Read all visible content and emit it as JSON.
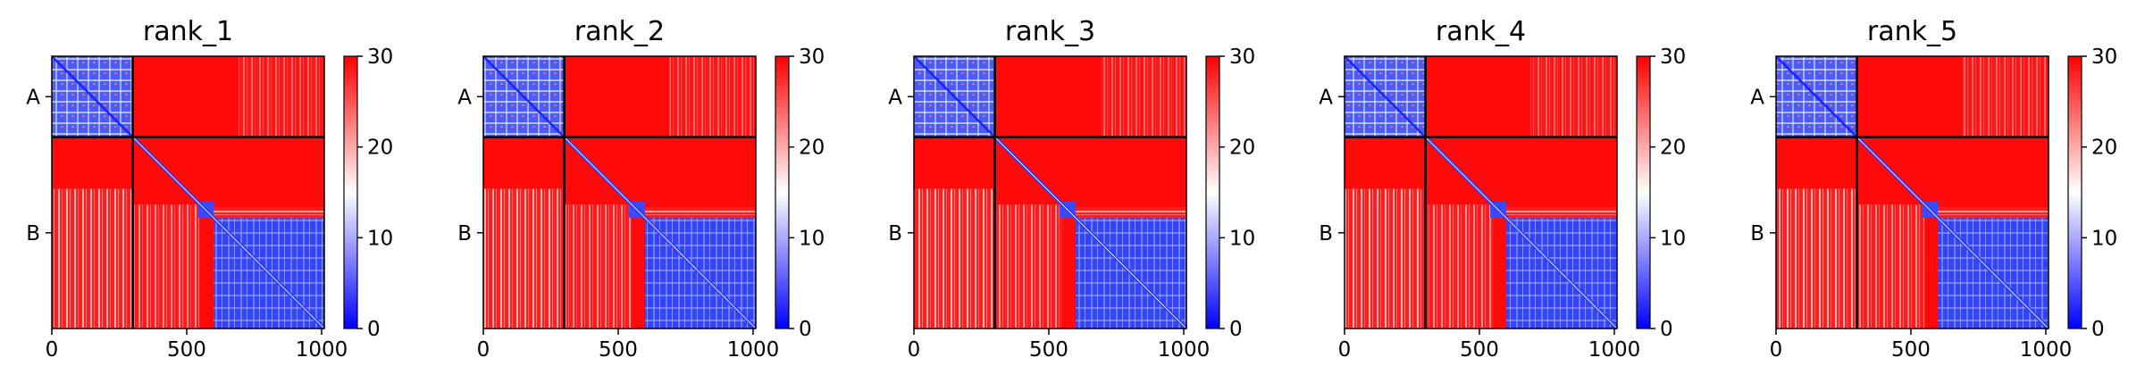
{
  "chart_data": [
    {
      "type": "heatmap",
      "title": "rank_1",
      "x_ticks": [
        0,
        500,
        1000
      ],
      "y_tick_labels": [
        "A",
        "B"
      ],
      "segments": [
        {
          "label": "A",
          "start": 0,
          "end": 300
        },
        {
          "label": "B",
          "start": 300,
          "end": 1010
        }
      ],
      "xlim": [
        0,
        1010
      ],
      "colorbar": {
        "min": 0,
        "max": 30,
        "ticks": [
          0,
          10,
          20,
          30
        ],
        "colormap": "bwr"
      }
    },
    {
      "type": "heatmap",
      "title": "rank_2",
      "x_ticks": [
        0,
        500,
        1000
      ],
      "y_tick_labels": [
        "A",
        "B"
      ],
      "segments": [
        {
          "label": "A",
          "start": 0,
          "end": 300
        },
        {
          "label": "B",
          "start": 300,
          "end": 1010
        }
      ],
      "xlim": [
        0,
        1010
      ],
      "colorbar": {
        "min": 0,
        "max": 30,
        "ticks": [
          0,
          10,
          20,
          30
        ],
        "colormap": "bwr"
      }
    },
    {
      "type": "heatmap",
      "title": "rank_3",
      "x_ticks": [
        0,
        500,
        1000
      ],
      "y_tick_labels": [
        "A",
        "B"
      ],
      "segments": [
        {
          "label": "A",
          "start": 0,
          "end": 300
        },
        {
          "label": "B",
          "start": 300,
          "end": 1010
        }
      ],
      "xlim": [
        0,
        1010
      ],
      "colorbar": {
        "min": 0,
        "max": 30,
        "ticks": [
          0,
          10,
          20,
          30
        ],
        "colormap": "bwr"
      }
    },
    {
      "type": "heatmap",
      "title": "rank_4",
      "x_ticks": [
        0,
        500,
        1000
      ],
      "y_tick_labels": [
        "A",
        "B"
      ],
      "segments": [
        {
          "label": "A",
          "start": 0,
          "end": 300
        },
        {
          "label": "B",
          "start": 300,
          "end": 1010
        }
      ],
      "xlim": [
        0,
        1010
      ],
      "colorbar": {
        "min": 0,
        "max": 30,
        "ticks": [
          0,
          10,
          20,
          30
        ],
        "colormap": "bwr"
      }
    },
    {
      "type": "heatmap",
      "title": "rank_5",
      "x_ticks": [
        0,
        500,
        1000
      ],
      "y_tick_labels": [
        "A",
        "B"
      ],
      "segments": [
        {
          "label": "A",
          "start": 0,
          "end": 300
        },
        {
          "label": "B",
          "start": 300,
          "end": 1010
        }
      ],
      "xlim": [
        0,
        1010
      ],
      "colorbar": {
        "min": 0,
        "max": 30,
        "ticks": [
          0,
          10,
          20,
          30
        ],
        "colormap": "bwr"
      }
    }
  ]
}
